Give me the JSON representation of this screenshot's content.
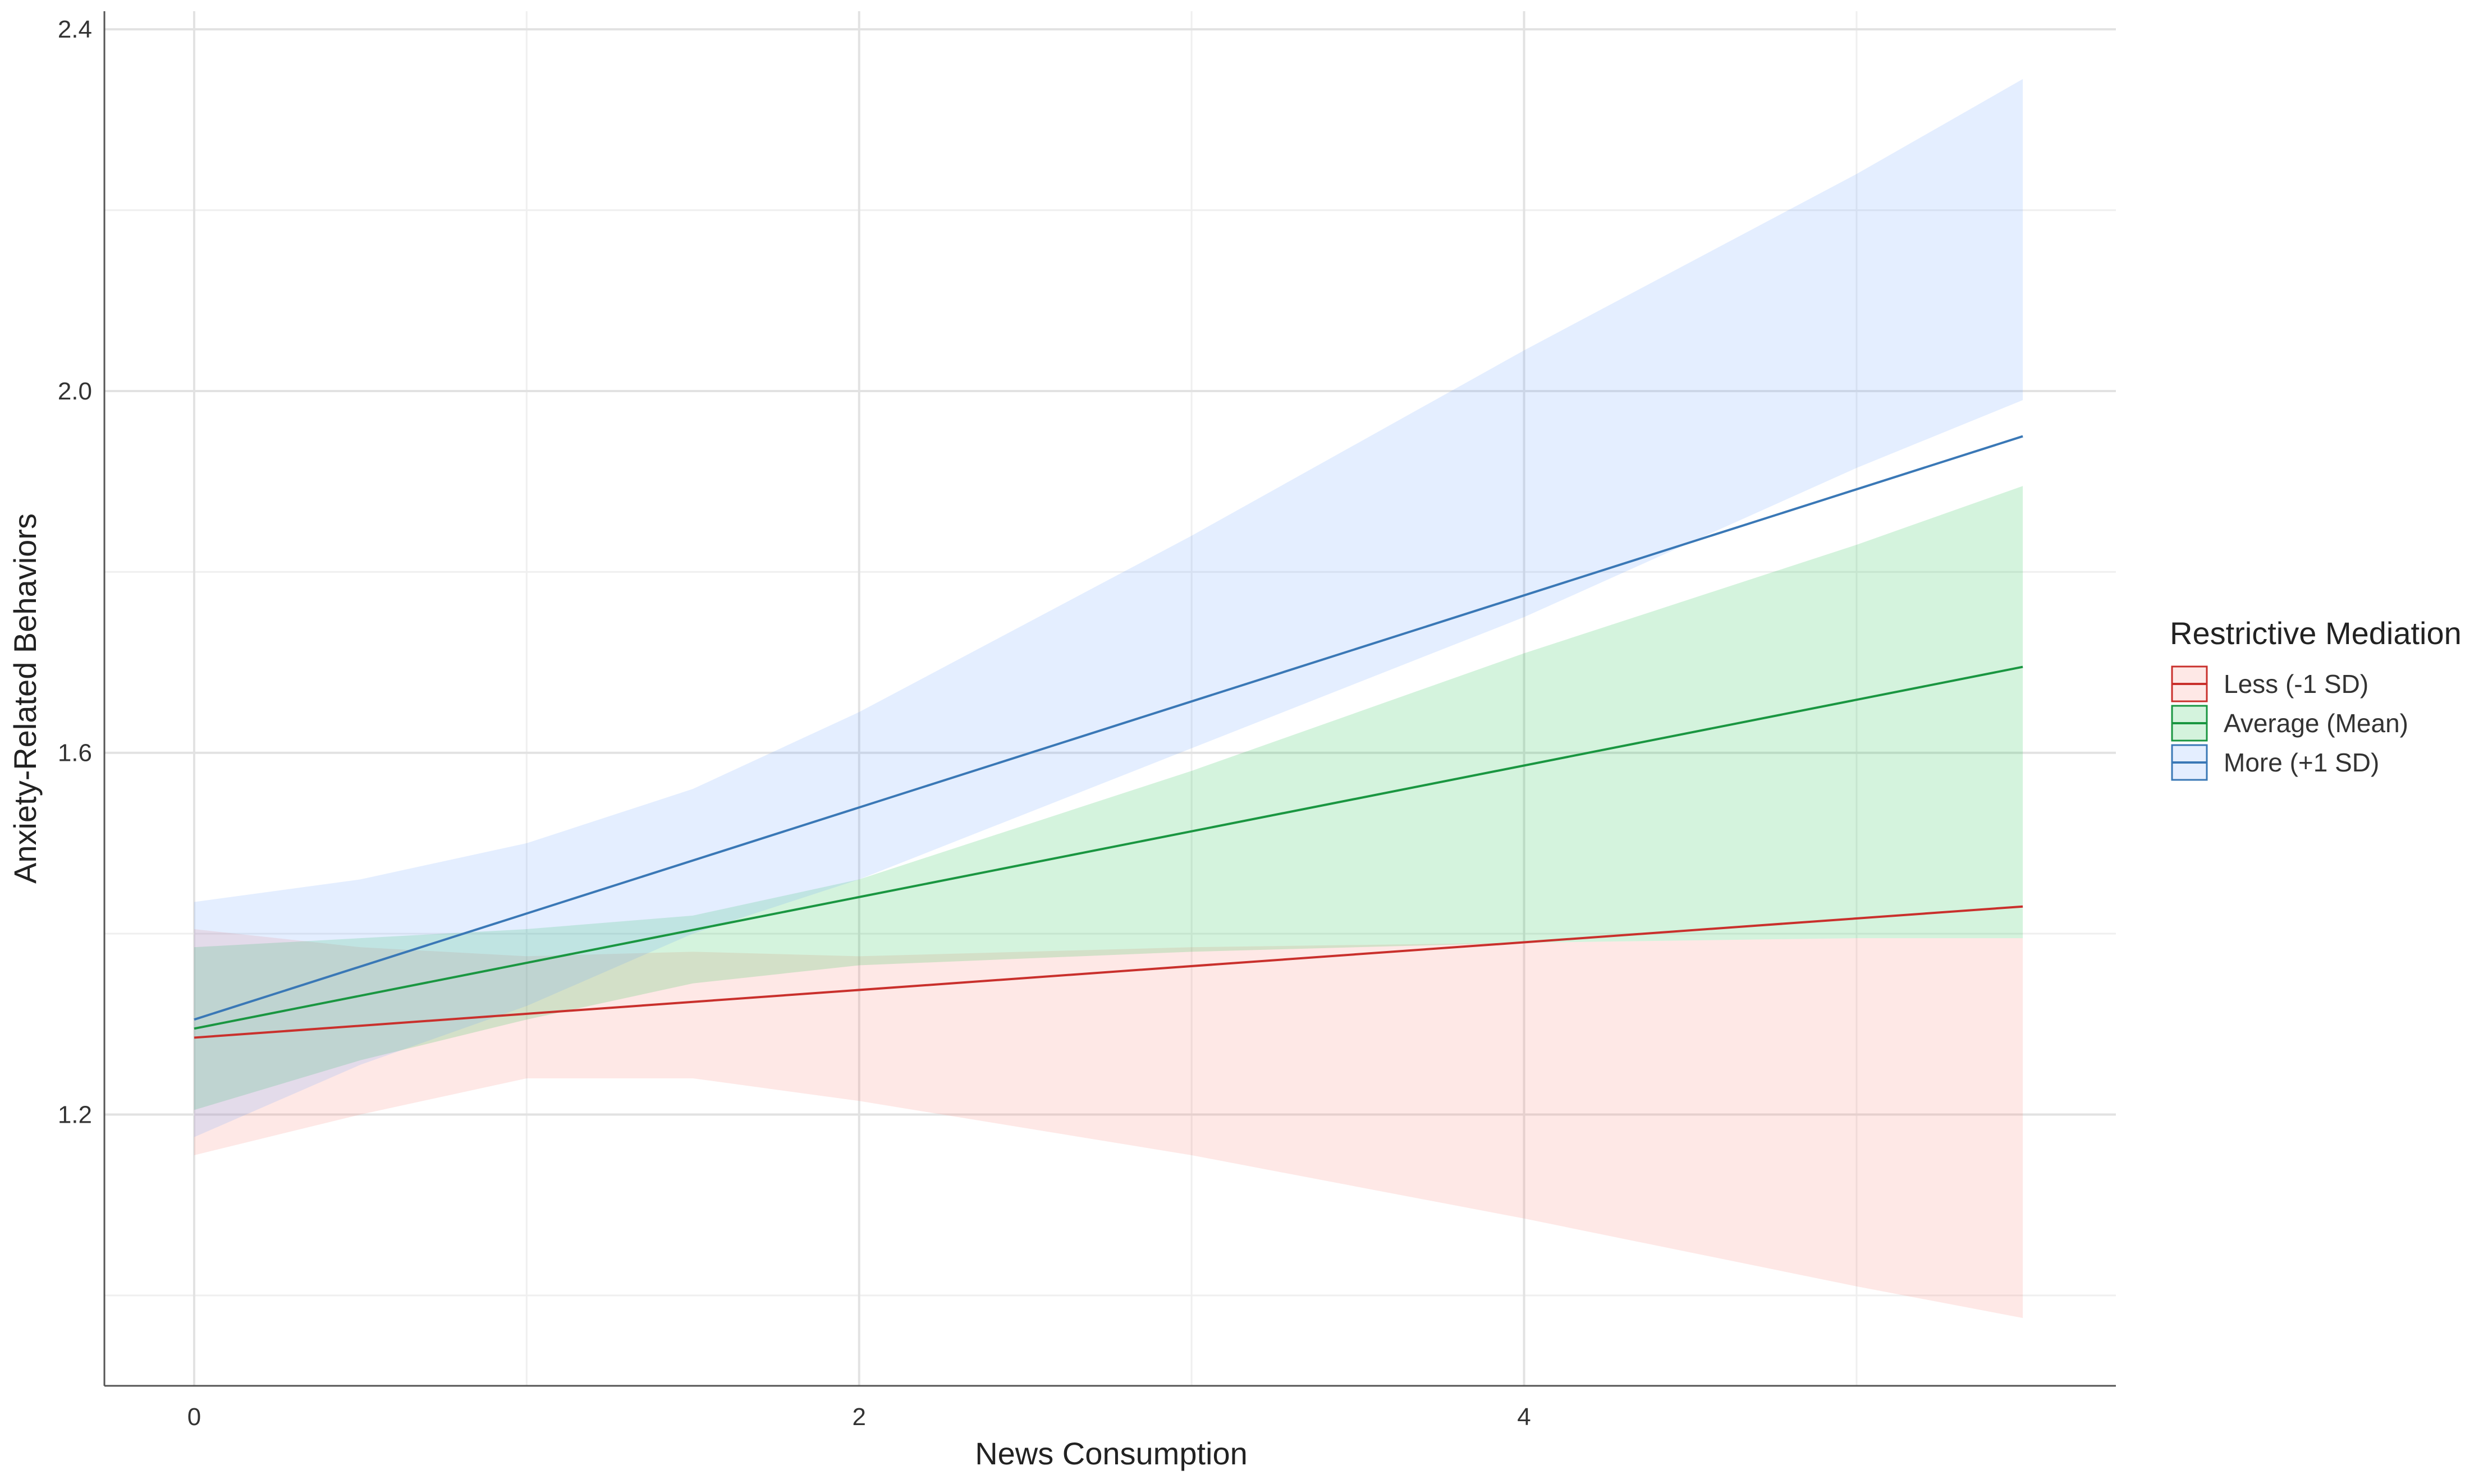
{
  "chart_data": {
    "type": "line",
    "title": "",
    "xlabel": "News Consumption",
    "ylabel": "Anxiety-Related Behaviors",
    "xlim": [
      -0.27,
      5.78
    ],
    "ylim": [
      0.9,
      2.42
    ],
    "x_major_ticks": [
      0,
      2,
      4
    ],
    "x_minor_ticks": [
      1,
      3,
      5
    ],
    "x_tick_labels": [
      "0",
      "2",
      "4"
    ],
    "y_major_ticks": [
      1.2,
      1.6,
      2.0,
      2.4
    ],
    "y_minor_ticks": [
      1.0,
      1.4,
      1.8,
      2.2
    ],
    "y_tick_labels": [
      "1.2",
      "1.6",
      "2.0",
      "2.4"
    ],
    "grid": true,
    "legend": {
      "title": "Restrictive Mediation",
      "position": "right",
      "labels": [
        "Less (-1 SD)",
        "Average (Mean)",
        "More (+1 SD)"
      ]
    },
    "series": [
      {
        "name": "Less (-1 SD)",
        "color": "#c9302c",
        "band_color": "#f8766d",
        "x": [
          0,
          5.5
        ],
        "y": [
          1.285,
          1.43
        ],
        "band_x": [
          0,
          0.5,
          1,
          1.5,
          2,
          3,
          4,
          5,
          5.5
        ],
        "band_lower": [
          1.155,
          1.2,
          1.24,
          1.24,
          1.215,
          1.155,
          1.085,
          1.01,
          0.975
        ],
        "band_upper": [
          1.405,
          1.385,
          1.375,
          1.38,
          1.375,
          1.385,
          1.39,
          1.395,
          1.395
        ]
      },
      {
        "name": "Average (Mean)",
        "color": "#1a9641",
        "band_color": "#00ba38",
        "x": [
          0,
          5.5
        ],
        "y": [
          1.295,
          1.695
        ],
        "band_x": [
          0,
          0.5,
          1,
          1.5,
          2,
          3,
          4,
          5,
          5.5
        ],
        "band_lower": [
          1.205,
          1.26,
          1.305,
          1.345,
          1.365,
          1.38,
          1.39,
          1.395,
          1.395
        ],
        "band_upper": [
          1.385,
          1.395,
          1.405,
          1.42,
          1.46,
          1.58,
          1.71,
          1.83,
          1.895
        ]
      },
      {
        "name": "More (+1 SD)",
        "color": "#3a78b6",
        "band_color": "#619cff",
        "x": [
          0,
          5.5
        ],
        "y": [
          1.305,
          1.95
        ],
        "band_x": [
          0,
          0.5,
          1,
          1.5,
          2,
          3,
          4,
          5,
          5.5
        ],
        "band_lower": [
          1.175,
          1.255,
          1.32,
          1.4,
          1.46,
          1.605,
          1.75,
          1.915,
          1.99
        ],
        "band_upper": [
          1.435,
          1.46,
          1.5,
          1.56,
          1.645,
          1.84,
          2.045,
          2.24,
          2.345
        ]
      }
    ]
  }
}
